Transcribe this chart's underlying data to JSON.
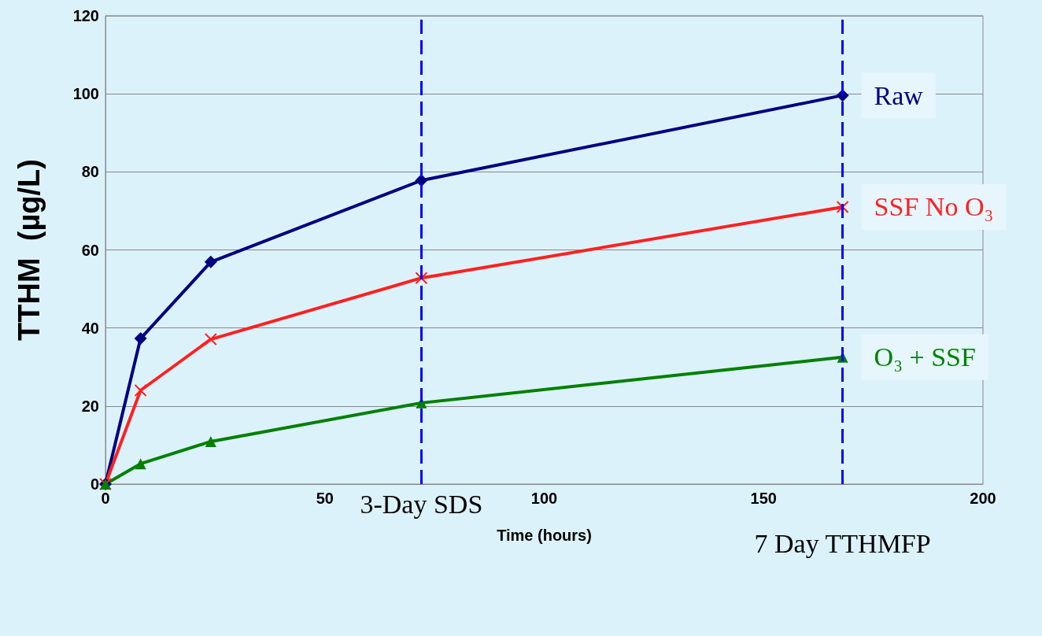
{
  "chart_data": {
    "type": "line",
    "xlabel": "Time (hours)",
    "ylabel": "TTHM  (µg/L)",
    "x": [
      0,
      8,
      24,
      72,
      168
    ],
    "series": [
      {
        "name": "Raw",
        "color": "#000080",
        "marker": "diamond",
        "values": [
          0,
          37.3,
          56.9,
          77.8,
          99.6
        ]
      },
      {
        "name": "SSF No O₃",
        "color": "#ff2020",
        "marker": "cross",
        "values": [
          0,
          24,
          37.1,
          52.8,
          71
        ]
      },
      {
        "name": "O₃ + SSF",
        "color": "#008000",
        "marker": "triangle",
        "values": [
          0,
          5.2,
          10.9,
          20.8,
          32.5
        ]
      }
    ],
    "xlim": [
      0,
      200
    ],
    "xticks": [
      0,
      50,
      100,
      150,
      200
    ],
    "ylim": [
      0,
      120
    ],
    "yticks": [
      0,
      20,
      40,
      60,
      80,
      100,
      120
    ],
    "grid": "y",
    "ref_lines": [
      {
        "axis": "x",
        "value": 72,
        "label": "3-Day SDS",
        "color": "#0000ff",
        "line_style": "dashed"
      },
      {
        "axis": "x",
        "value": 168,
        "label": "7 Day TTHMFP",
        "color": "#0000ff",
        "line_style": "dashed"
      }
    ]
  }
}
